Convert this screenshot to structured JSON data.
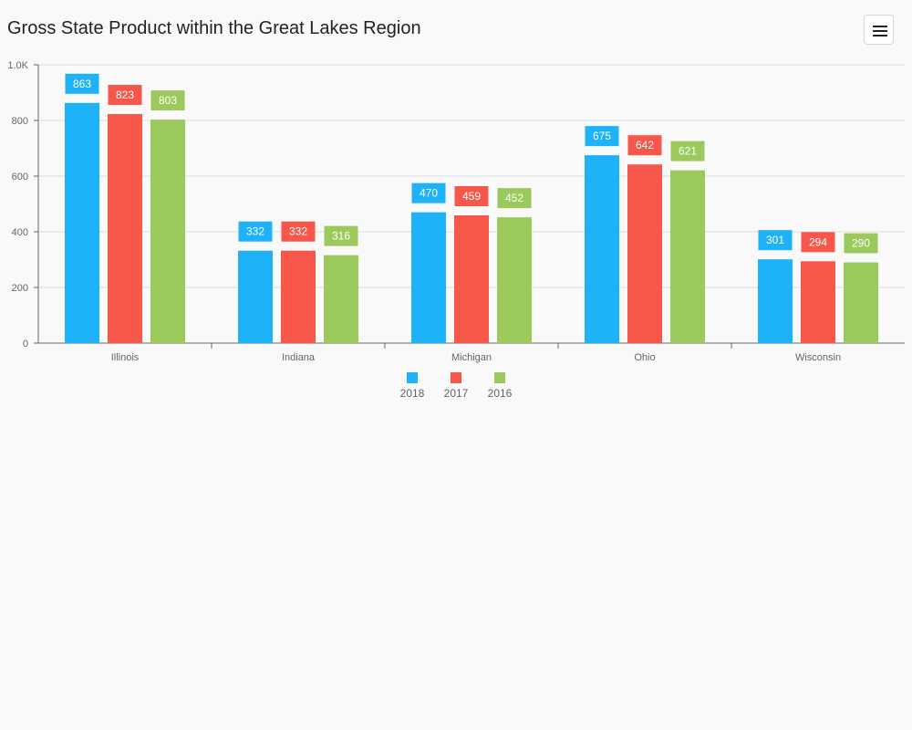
{
  "title": "Gross State Product within the Great Lakes Region",
  "menu": {
    "icon": "hamburger-menu-icon"
  },
  "chart_data": {
    "type": "bar",
    "title": "Gross State Product within the Great Lakes Region",
    "xlabel": "",
    "ylabel": "",
    "categories": [
      "Illinois",
      "Indiana",
      "Michigan",
      "Ohio",
      "Wisconsin"
    ],
    "series": [
      {
        "name": "2018",
        "color": "#1eb2f8",
        "values": [
          863,
          332,
          470,
          675,
          301
        ]
      },
      {
        "name": "2017",
        "color": "#f7574b",
        "values": [
          823,
          332,
          459,
          642,
          294
        ]
      },
      {
        "name": "2016",
        "color": "#9bc95b",
        "values": [
          803,
          316,
          452,
          621,
          290
        ]
      }
    ],
    "ylim": [
      0,
      1000
    ],
    "yticks": [
      {
        "value": 0,
        "label": "0"
      },
      {
        "value": 200,
        "label": "200"
      },
      {
        "value": 400,
        "label": "400"
      },
      {
        "value": 600,
        "label": "600"
      },
      {
        "value": 800,
        "label": "800"
      },
      {
        "value": 1000,
        "label": "1.0K"
      }
    ],
    "grid": true,
    "legend_position": "bottom",
    "data_labels": true
  }
}
